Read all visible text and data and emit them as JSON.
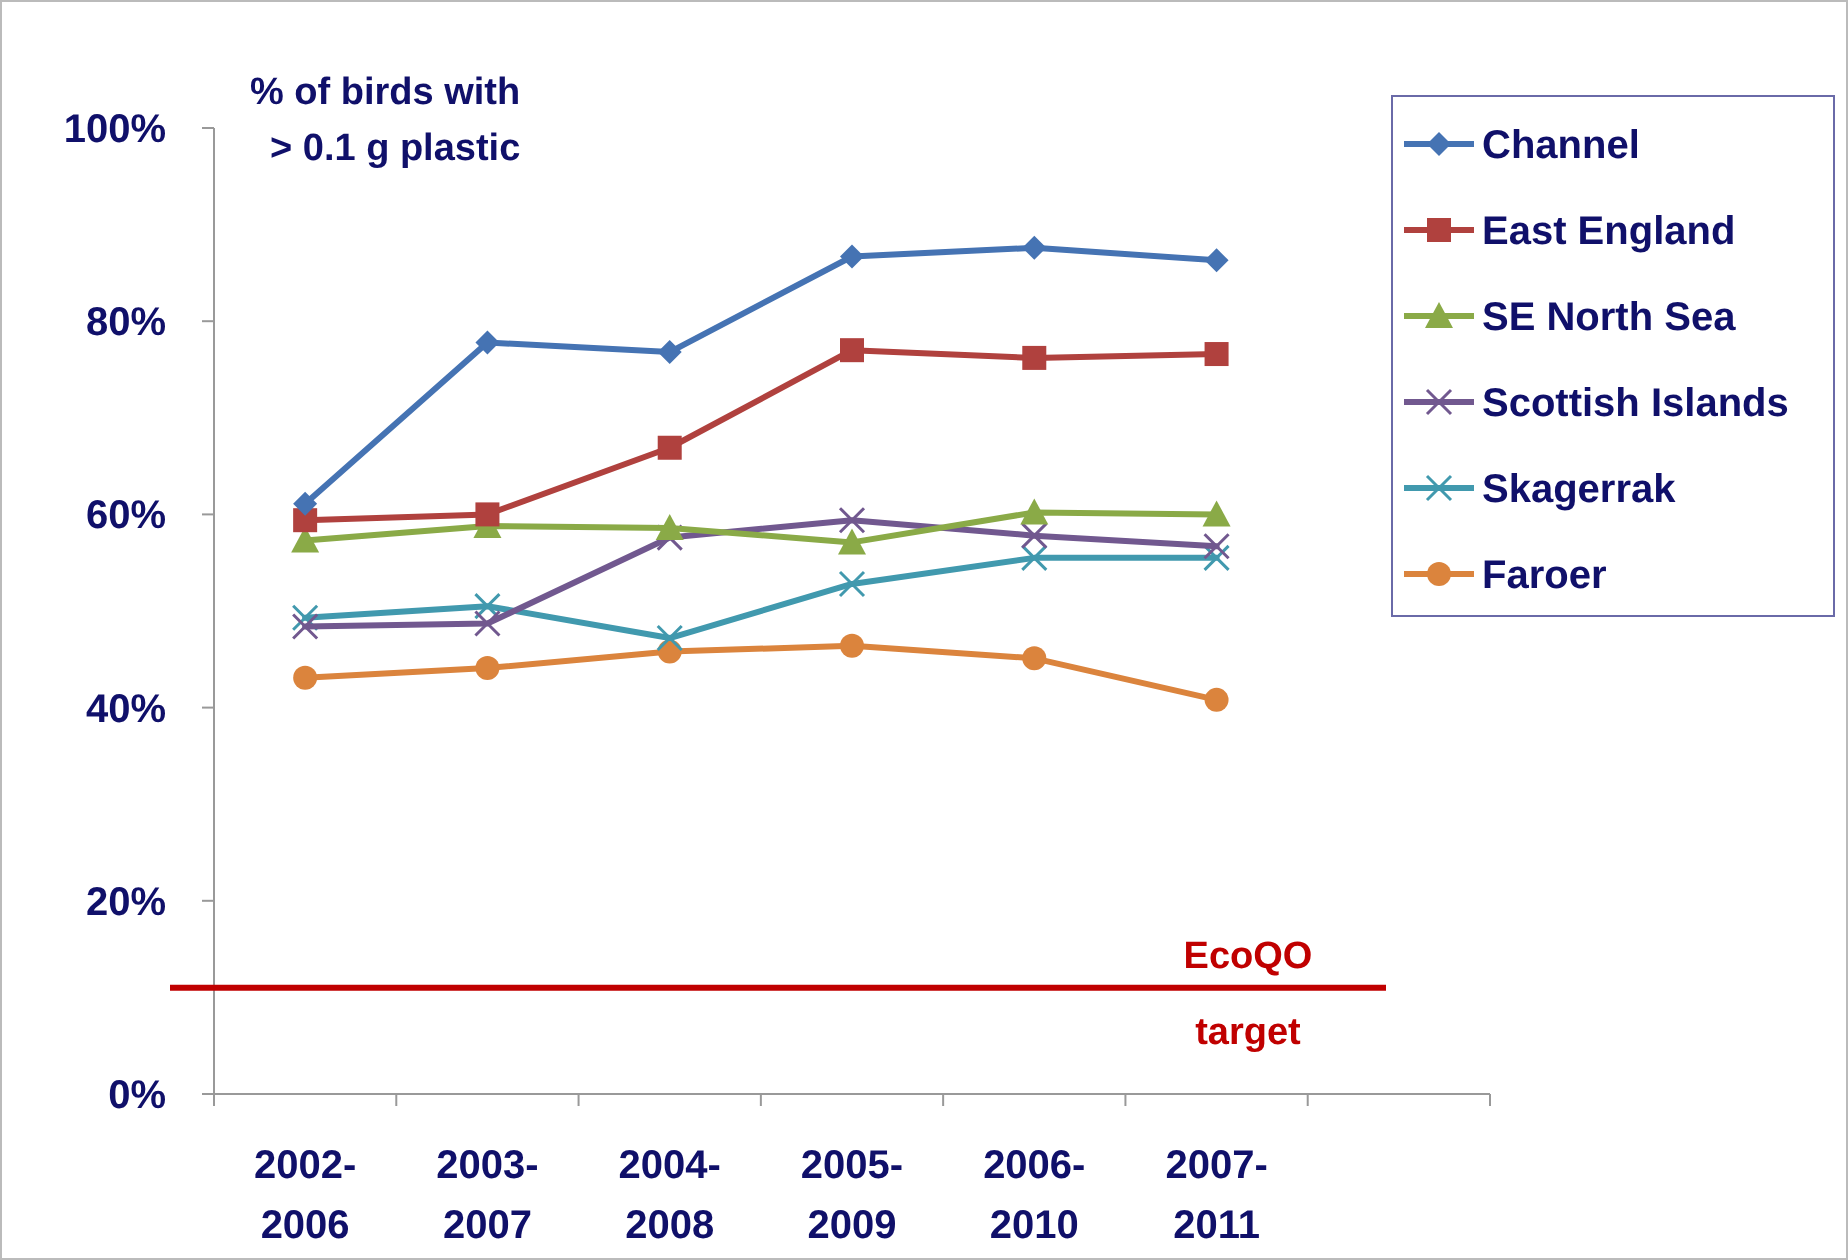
{
  "chart_data": {
    "type": "line",
    "title": "% of birds with\n> 0.1 g plastic",
    "categories": [
      "2002-\n2006",
      "2003-\n2007",
      "2004-\n2008",
      "2005-\n2009",
      "2006-\n2010",
      "2007-\n2011",
      null
    ],
    "ylim": [
      0,
      100
    ],
    "yticks": [
      {
        "value": 0,
        "label": "0%"
      },
      {
        "value": 20,
        "label": "20%"
      },
      {
        "value": 40,
        "label": "40%"
      },
      {
        "value": 60,
        "label": "60%"
      },
      {
        "value": 80,
        "label": "80%"
      },
      {
        "value": 100,
        "label": "100%"
      }
    ],
    "grid": false,
    "legend": "top right",
    "series": [
      {
        "name": "Channel",
        "color": "#4573b3",
        "marker": "diamond",
        "values": [
          61.1,
          77.8,
          76.8,
          86.7,
          87.6,
          86.3,
          null
        ]
      },
      {
        "name": "East England",
        "color": "#b0413e",
        "marker": "square",
        "values": [
          59.4,
          60.0,
          66.9,
          77.0,
          76.2,
          76.6,
          null
        ]
      },
      {
        "name": "SE North Sea",
        "color": "#8aaa47",
        "marker": "triangle",
        "values": [
          57.3,
          58.8,
          58.6,
          57.1,
          60.2,
          60.0,
          null
        ]
      },
      {
        "name": "Scottish Islands",
        "color": "#71588f",
        "marker": "cross",
        "values": [
          48.4,
          48.7,
          57.6,
          59.4,
          57.8,
          56.7,
          null
        ]
      },
      {
        "name": "Skagerrak",
        "color": "#4199ae",
        "marker": "cross",
        "values": [
          49.3,
          50.5,
          47.2,
          52.8,
          55.5,
          55.5,
          null
        ]
      },
      {
        "name": "Faroer",
        "color": "#db843d",
        "marker": "circle",
        "values": [
          43.1,
          44.1,
          45.8,
          46.4,
          45.1,
          40.8,
          null
        ]
      }
    ],
    "ref_lines": [
      {
        "axis": "y",
        "value": 11,
        "label": "EcoQO target",
        "color": "#c00000"
      }
    ]
  }
}
